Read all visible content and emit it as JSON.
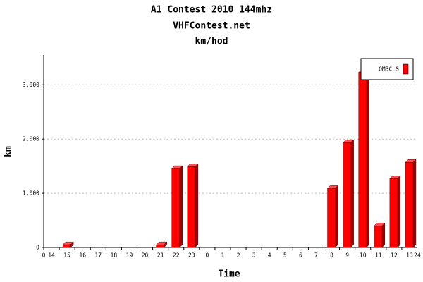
{
  "chart_data": {
    "type": "bar",
    "title": "A1 Contest 2010 144mhz",
    "subtitle": "VHFContest.net",
    "subtitle2": "km/hod",
    "x_label": "Time",
    "y_label": "km",
    "categories": [
      "14",
      "15",
      "16",
      "17",
      "18",
      "19",
      "20",
      "21",
      "22",
      "23",
      "0",
      "1",
      "2",
      "3",
      "4",
      "5",
      "6",
      "7",
      "8",
      "9",
      "10",
      "11",
      "12",
      "13"
    ],
    "x_edge_labels": [
      "0",
      "24"
    ],
    "series": [
      {
        "name": "OM3CLS",
        "color": "#ff0000",
        "values": [
          0,
          50,
          0,
          0,
          0,
          0,
          0,
          50,
          1455,
          1490,
          0,
          0,
          0,
          0,
          0,
          0,
          0,
          0,
          1090,
          1935,
          3230,
          400,
          1270,
          1570
        ]
      }
    ],
    "ylim": [
      0,
      3550
    ],
    "yticks": [
      0,
      {
        "value": 1000,
        "label": "1,000"
      },
      {
        "value": 2000,
        "label": "2,000"
      },
      {
        "value": 3000,
        "label": "3,000"
      }
    ],
    "grid": true,
    "legend": "top-right"
  }
}
